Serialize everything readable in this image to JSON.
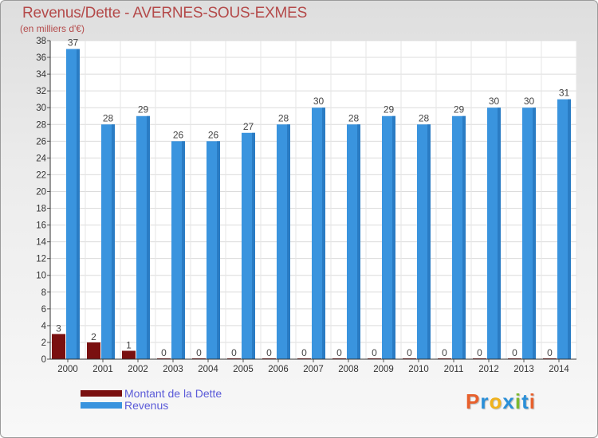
{
  "title": "Revenus/Dette - AVERNES-SOUS-EXMES",
  "unit_label": "(en milliers d'€)",
  "chart_data": {
    "type": "bar",
    "categories": [
      "2000",
      "2001",
      "2002",
      "2003",
      "2004",
      "2005",
      "2006",
      "2007",
      "2008",
      "2009",
      "2010",
      "2011",
      "2012",
      "2013",
      "2014"
    ],
    "series": [
      {
        "name": "Montant de la Dette",
        "color": "#7a1010",
        "values": [
          3,
          2,
          1,
          0,
          0,
          0,
          0,
          0,
          0,
          0,
          0,
          0,
          0,
          0,
          0
        ]
      },
      {
        "name": "Revenus",
        "color": "#3a94de",
        "values": [
          37,
          28,
          29,
          26,
          26,
          27,
          28,
          30,
          28,
          29,
          28,
          29,
          30,
          30,
          31
        ]
      }
    ],
    "yticks": [
      0,
      2,
      4,
      6,
      8,
      10,
      12,
      14,
      16,
      18,
      20,
      22,
      24,
      26,
      28,
      30,
      32,
      34,
      36,
      38
    ],
    "ylim": [
      0,
      38
    ],
    "grid": true,
    "legend_position": "bottom-left"
  },
  "legend": [
    {
      "label": "Montant de la Dette",
      "color": "#7a1010"
    },
    {
      "label": "Revenus",
      "color": "#3a94de"
    }
  ],
  "logo": {
    "letters": [
      "P",
      "r",
      "o",
      "x",
      "i",
      "t",
      "i"
    ],
    "colors": [
      "#e8602c",
      "#2a8fd8",
      "#f0b21c",
      "#2a8fd8",
      "#7cb82f",
      "#2a8fd8",
      "#e8602c"
    ]
  }
}
